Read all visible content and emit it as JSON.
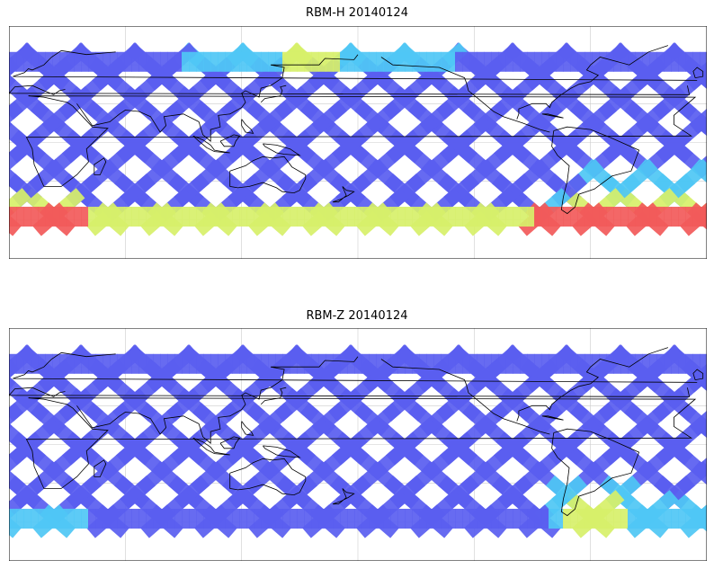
{
  "panels": [
    {
      "id": "top",
      "title": "RBM-H 20140124",
      "variable": "RBM-H",
      "date": "20140124"
    },
    {
      "id": "bottom",
      "title": "RBM-Z 20140124",
      "variable": "RBM-Z",
      "date": "20140124"
    }
  ],
  "map": {
    "projection": "equirectangular",
    "central_longitude": 180,
    "lon_range": [
      0,
      360
    ],
    "lat_range": [
      -90,
      90
    ],
    "data_lat_band": [
      -65,
      70
    ],
    "gridlines": true,
    "coastlines": true
  },
  "colors": {
    "colormap": [
      "#5a5ef0",
      "#4a86f2",
      "#4fc7f5",
      "#6ff0e0",
      "#d7f06a",
      "#f7e25a",
      "#f7a05a",
      "#f25a5a"
    ],
    "track_base": "#6a6af0",
    "grid": "#cccccc",
    "coast": "#000000"
  }
}
